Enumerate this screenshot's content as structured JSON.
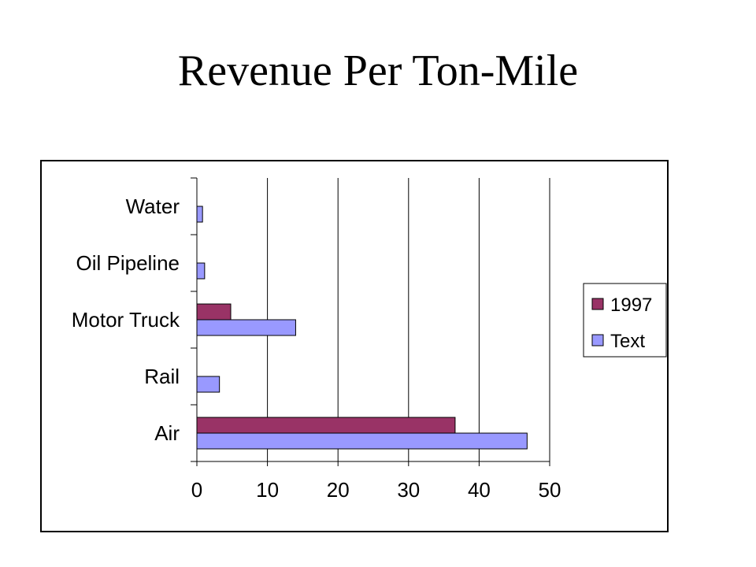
{
  "slide": {
    "title": "Revenue Per Ton-Mile"
  },
  "chart_data": {
    "type": "bar",
    "orientation": "horizontal",
    "title": "",
    "xlabel": "",
    "ylabel": "",
    "categories": [
      "Water",
      "Oil Pipeline",
      "Motor Truck",
      "Rail",
      "Air"
    ],
    "series": [
      {
        "name": "1997",
        "color": "#993366",
        "values": [
          null,
          null,
          4.8,
          null,
          36.6
        ]
      },
      {
        "name": "Text",
        "color": "#9999FF",
        "values": [
          0.8,
          1.1,
          14.0,
          3.2,
          46.8
        ]
      }
    ],
    "xlim": [
      0,
      50
    ],
    "xticks": [
      "0",
      "10",
      "20",
      "30",
      "40",
      "50"
    ],
    "grid": true,
    "legend_position": "right"
  }
}
